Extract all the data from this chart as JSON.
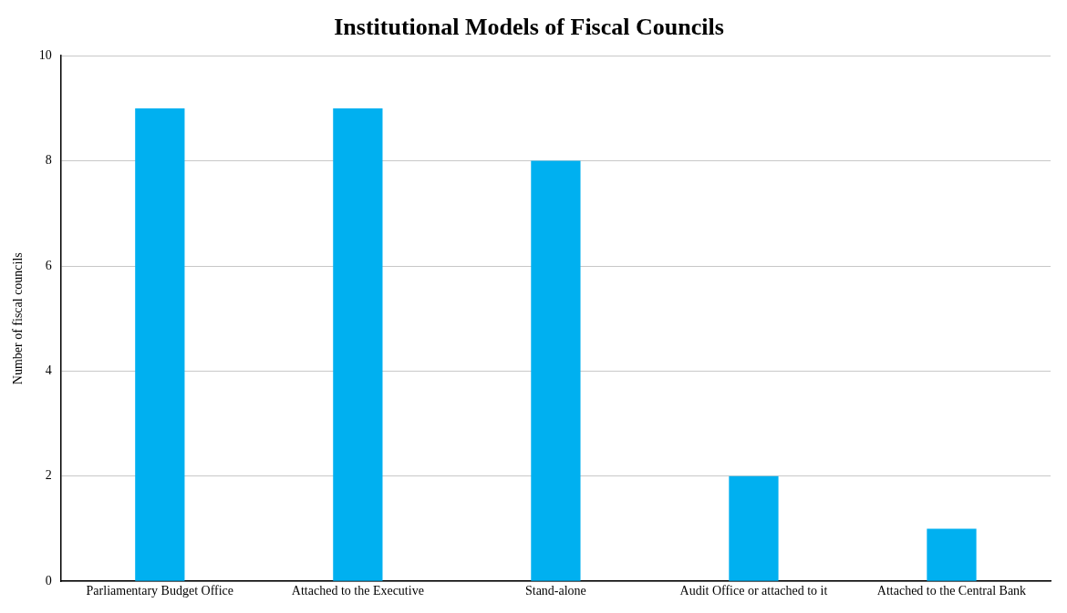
{
  "chart_data": {
    "type": "bar",
    "title": "Institutional Models of Fiscal Councils",
    "ylabel": "Number of fiscal councils",
    "categories": [
      "Parliamentary Budget Office",
      "Attached to the Executive",
      "Stand-alone",
      "Audit Office or attached to it",
      "Attached to the Central Bank"
    ],
    "values": [
      9,
      9,
      8,
      2,
      1
    ],
    "color": "#00b0f0",
    "ylim": [
      0,
      10
    ],
    "yticks": [
      0,
      2,
      4,
      6,
      8,
      10
    ],
    "grid": "y",
    "legend": false
  }
}
